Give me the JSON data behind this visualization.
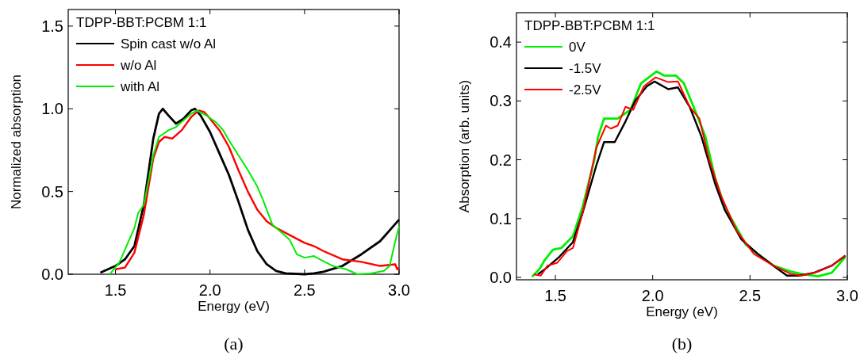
{
  "chart_data": [
    {
      "type": "line",
      "xlabel": "Energy (eV)",
      "ylabel": "Normalized absorption",
      "legend_title": "TDPP-BBT:PCBM 1:1",
      "legend": "top left",
      "annotations": [
        "(a)"
      ],
      "xlim": [
        1.25,
        3.0
      ],
      "ylim": [
        0,
        1.6
      ],
      "xticks": [
        {
          "value": 1.5,
          "label": "1.5"
        },
        {
          "value": 2.0,
          "label": "2.0"
        },
        {
          "value": 2.5,
          "label": "2.5"
        },
        {
          "value": 3.0,
          "label": "3.0"
        }
      ],
      "yticks": [
        {
          "value": 0,
          "label": "0.0"
        },
        {
          "value": 0.5,
          "label": "0.5"
        },
        {
          "value": 1.0,
          "label": "1.0"
        },
        {
          "value": 1.5,
          "label": "1.5"
        }
      ],
      "series": [
        {
          "name": "Spin cast w/o Al",
          "color": "#000000",
          "x": [
            1.42,
            1.5,
            1.55,
            1.6,
            1.65,
            1.7,
            1.73,
            1.75,
            1.78,
            1.82,
            1.86,
            1.9,
            1.92,
            1.95,
            2.0,
            2.05,
            2.1,
            2.15,
            2.2,
            2.25,
            2.3,
            2.35,
            2.4,
            2.5,
            2.55,
            2.6,
            2.7,
            2.8,
            2.9,
            3.0
          ],
          "values": [
            0.01,
            0.05,
            0.09,
            0.17,
            0.42,
            0.82,
            0.97,
            1.0,
            0.96,
            0.91,
            0.94,
            0.99,
            1.0,
            0.96,
            0.86,
            0.73,
            0.6,
            0.44,
            0.27,
            0.14,
            0.06,
            0.02,
            0.005,
            0.0,
            0.005,
            0.015,
            0.05,
            0.12,
            0.2,
            0.33
          ]
        },
        {
          "name": "w/o Al",
          "color": "#ff0000",
          "x": [
            1.5,
            1.55,
            1.6,
            1.65,
            1.7,
            1.73,
            1.76,
            1.8,
            1.85,
            1.9,
            1.94,
            1.97,
            2.0,
            2.05,
            2.1,
            2.15,
            2.2,
            2.25,
            2.3,
            2.35,
            2.4,
            2.5,
            2.55,
            2.6,
            2.7,
            2.8,
            2.9,
            2.98,
            2.99,
            3.0
          ],
          "values": [
            0.03,
            0.04,
            0.13,
            0.36,
            0.7,
            0.8,
            0.83,
            0.82,
            0.87,
            0.95,
            0.99,
            0.98,
            0.94,
            0.87,
            0.77,
            0.63,
            0.5,
            0.39,
            0.32,
            0.28,
            0.25,
            0.19,
            0.17,
            0.14,
            0.09,
            0.075,
            0.05,
            0.06,
            0.03,
            0.04
          ]
        },
        {
          "name": "with Al",
          "color": "#00ee00",
          "x": [
            1.47,
            1.52,
            1.6,
            1.62,
            1.65,
            1.7,
            1.73,
            1.78,
            1.82,
            1.86,
            1.9,
            1.93,
            1.98,
            2.03,
            2.07,
            2.1,
            2.15,
            2.2,
            2.25,
            2.28,
            2.33,
            2.38,
            2.42,
            2.46,
            2.5,
            2.55,
            2.58,
            2.65,
            2.72,
            2.78,
            2.85,
            2.92,
            2.95,
            2.98,
            3.0
          ],
          "values": [
            0.0,
            0.07,
            0.28,
            0.37,
            0.42,
            0.72,
            0.83,
            0.87,
            0.89,
            0.93,
            0.97,
            0.99,
            0.96,
            0.92,
            0.87,
            0.81,
            0.72,
            0.63,
            0.53,
            0.45,
            0.3,
            0.25,
            0.21,
            0.12,
            0.1,
            0.11,
            0.09,
            0.05,
            0.03,
            0.0,
            0.005,
            0.02,
            0.05,
            0.2,
            0.29
          ]
        }
      ]
    },
    {
      "type": "line",
      "xlabel": "Energy (eV)",
      "ylabel": "Absorption (arb. units)",
      "legend_title": "TDPP-BBT:PCBM 1:1",
      "legend": "top left",
      "annotations": [
        "(b)"
      ],
      "xlim": [
        1.3,
        3.0
      ],
      "ylim": [
        -0.004,
        0.45
      ],
      "xticks": [
        {
          "value": 1.5,
          "label": "1.5"
        },
        {
          "value": 2.0,
          "label": "2.0"
        },
        {
          "value": 2.5,
          "label": "2.5"
        },
        {
          "value": 3.0,
          "label": "3.0"
        }
      ],
      "yticks": [
        {
          "value": 0,
          "label": "0.0"
        },
        0.1,
        0.2,
        0.3,
        0.4
      ],
      "series": [
        {
          "name": "0V",
          "color": "#00ee00",
          "x": [
            1.38,
            1.42,
            1.446,
            1.487,
            1.53,
            1.59,
            1.64,
            1.7,
            1.72,
            1.75,
            1.82,
            1.886,
            1.94,
            2.02,
            2.06,
            2.12,
            2.16,
            2.21,
            2.27,
            2.32,
            2.37,
            2.43,
            2.48,
            2.54,
            2.62,
            2.71,
            2.78,
            2.85,
            2.92,
            2.99
          ],
          "values": [
            0.001,
            0.015,
            0.03,
            0.047,
            0.05,
            0.07,
            0.12,
            0.2,
            0.24,
            0.27,
            0.27,
            0.285,
            0.33,
            0.35,
            0.343,
            0.343,
            0.33,
            0.29,
            0.24,
            0.17,
            0.12,
            0.085,
            0.055,
            0.04,
            0.02,
            0.01,
            0.005,
            0.002,
            0.008,
            0.035
          ]
        },
        {
          "name": "-1.5V",
          "color": "#000000",
          "x": [
            1.41,
            1.45,
            1.52,
            1.59,
            1.64,
            1.71,
            1.75,
            1.805,
            1.86,
            1.91,
            1.97,
            2.01,
            2.08,
            2.13,
            2.19,
            2.25,
            2.32,
            2.37,
            2.455,
            2.54,
            2.62,
            2.69,
            2.75,
            2.83,
            2.92,
            2.99
          ],
          "values": [
            0.005,
            0.015,
            0.035,
            0.06,
            0.11,
            0.19,
            0.23,
            0.23,
            0.265,
            0.3,
            0.325,
            0.333,
            0.32,
            0.323,
            0.29,
            0.24,
            0.16,
            0.115,
            0.065,
            0.04,
            0.02,
            0.003,
            0.003,
            0.008,
            0.02,
            0.037
          ]
        },
        {
          "name": "-2.5V",
          "color": "#ff0000",
          "x": [
            1.39,
            1.425,
            1.46,
            1.51,
            1.56,
            1.59,
            1.64,
            1.71,
            1.76,
            1.785,
            1.82,
            1.86,
            1.9,
            1.955,
            2.015,
            2.08,
            2.13,
            2.19,
            2.24,
            2.29,
            2.35,
            2.43,
            2.52,
            2.62,
            2.71,
            2.765,
            2.85,
            2.92,
            2.99
          ],
          "values": [
            0.005,
            0.003,
            0.02,
            0.025,
            0.045,
            0.05,
            0.11,
            0.22,
            0.258,
            0.253,
            0.258,
            0.29,
            0.285,
            0.325,
            0.34,
            0.332,
            0.333,
            0.29,
            0.27,
            0.2,
            0.14,
            0.08,
            0.04,
            0.02,
            0.006,
            0.003,
            0.01,
            0.02,
            0.037
          ]
        }
      ]
    }
  ]
}
